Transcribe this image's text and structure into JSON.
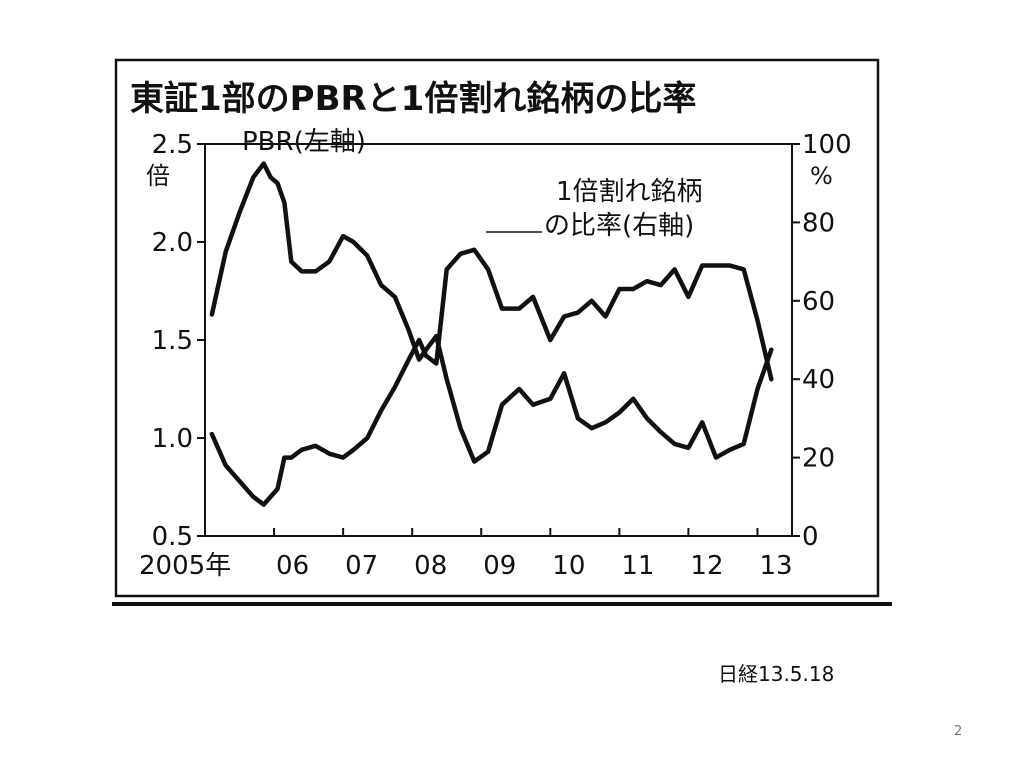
{
  "slide": {
    "source": "日経13.5.18",
    "page_number": "2"
  },
  "chart_data": {
    "type": "line",
    "title": "東証1部のPBRと1倍割れ銘柄の比率",
    "left_axis": {
      "unit": "倍",
      "range": [
        0.5,
        2.5
      ],
      "ticks": [
        {
          "value": 0.5,
          "label": "0.5"
        },
        {
          "value": 1.0,
          "label": "1.0"
        },
        {
          "value": 1.5,
          "label": "1.5"
        },
        {
          "value": 2.0,
          "label": "2.0"
        },
        {
          "value": 2.5,
          "label": "2.5"
        }
      ]
    },
    "right_axis": {
      "unit": "%",
      "range": [
        0,
        100
      ],
      "ticks": [
        {
          "value": 0,
          "label": "0"
        },
        {
          "value": 20,
          "label": "20"
        },
        {
          "value": 40,
          "label": "40"
        },
        {
          "value": 60,
          "label": "60"
        },
        {
          "value": 80,
          "label": "80"
        },
        {
          "value": 100,
          "label": "100"
        }
      ]
    },
    "x_axis": {
      "range": [
        2005.0,
        2013.5
      ],
      "ticks": [
        {
          "value": 2005.0,
          "label": "2005年"
        },
        {
          "value": 2006.0,
          "label": "06"
        },
        {
          "value": 2007.0,
          "label": "07"
        },
        {
          "value": 2008.0,
          "label": "08"
        },
        {
          "value": 2009.0,
          "label": "09"
        },
        {
          "value": 2010.0,
          "label": "10"
        },
        {
          "value": 2011.0,
          "label": "11"
        },
        {
          "value": 2012.0,
          "label": "12"
        },
        {
          "value": 2013.0,
          "label": "13"
        }
      ]
    },
    "series": [
      {
        "name": "PBR(左軸)",
        "axis": "left",
        "x": [
          2005.1,
          2005.3,
          2005.5,
          2005.7,
          2005.85,
          2005.95,
          2006.05,
          2006.15,
          2006.25,
          2006.4,
          2006.6,
          2006.8,
          2007.0,
          2007.15,
          2007.35,
          2007.55,
          2007.75,
          2007.95,
          2008.1,
          2008.2,
          2008.35,
          2008.5,
          2008.7,
          2008.9,
          2009.1,
          2009.3,
          2009.55,
          2009.75,
          2010.0,
          2010.2,
          2010.4,
          2010.6,
          2010.8,
          2011.0,
          2011.2,
          2011.4,
          2011.6,
          2011.8,
          2012.0,
          2012.2,
          2012.4,
          2012.6,
          2012.8,
          2013.0,
          2013.2
        ],
        "values": [
          1.63,
          1.95,
          2.15,
          2.33,
          2.4,
          2.33,
          2.3,
          2.2,
          1.9,
          1.85,
          1.85,
          1.9,
          2.03,
          2.0,
          1.93,
          1.78,
          1.72,
          1.55,
          1.4,
          1.45,
          1.52,
          1.3,
          1.05,
          0.88,
          0.93,
          1.17,
          1.25,
          1.17,
          1.2,
          1.33,
          1.1,
          1.05,
          1.08,
          1.13,
          1.2,
          1.1,
          1.03,
          0.97,
          0.95,
          1.08,
          0.9,
          0.94,
          0.97,
          1.25,
          1.45
        ]
      },
      {
        "name": "1倍割れ銘柄の比率(右軸)",
        "axis": "right",
        "x": [
          2005.1,
          2005.3,
          2005.5,
          2005.7,
          2005.85,
          2005.95,
          2006.05,
          2006.15,
          2006.25,
          2006.4,
          2006.6,
          2006.8,
          2007.0,
          2007.15,
          2007.35,
          2007.55,
          2007.75,
          2007.95,
          2008.1,
          2008.2,
          2008.35,
          2008.5,
          2008.7,
          2008.9,
          2009.1,
          2009.3,
          2009.55,
          2009.75,
          2010.0,
          2010.2,
          2010.4,
          2010.6,
          2010.8,
          2011.0,
          2011.2,
          2011.4,
          2011.6,
          2011.8,
          2012.0,
          2012.2,
          2012.4,
          2012.6,
          2012.8,
          2013.0,
          2013.2
        ],
        "values": [
          26,
          18,
          14,
          10,
          8,
          10,
          12,
          20,
          20,
          22,
          23,
          21,
          20,
          22,
          25,
          32,
          38,
          45,
          50,
          46,
          44,
          68,
          72,
          73,
          68,
          58,
          58,
          61,
          50,
          56,
          57,
          60,
          56,
          63,
          63,
          65,
          64,
          68,
          61,
          69,
          69,
          69,
          68,
          55,
          40
        ]
      }
    ],
    "annotations": [
      {
        "text": "PBR(左軸)"
      },
      {
        "lines": [
          "1倍割れ銘柄",
          "の比率(右軸)"
        ]
      }
    ]
  }
}
